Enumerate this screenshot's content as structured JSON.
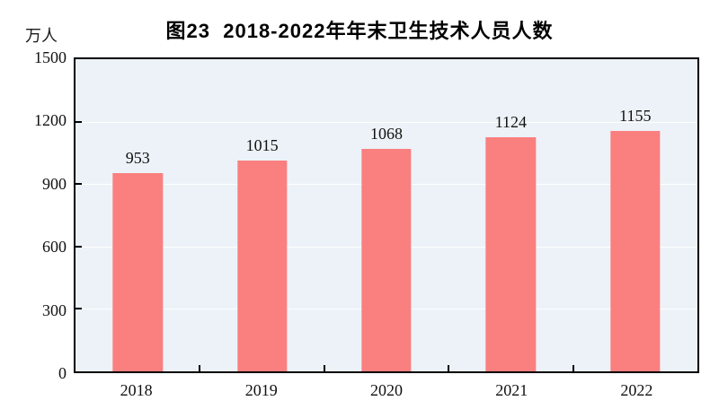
{
  "figure": {
    "title": "图23  2018-2022年年末卫生技术人员人数",
    "unit_label": "万人"
  },
  "chart_data": {
    "type": "bar",
    "title": "图23  2018-2022年年末卫生技术人员人数",
    "ylabel": "万人",
    "xlabel": "",
    "categories": [
      "2018",
      "2019",
      "2020",
      "2021",
      "2022"
    ],
    "values": [
      953,
      1015,
      1068,
      1124,
      1155
    ],
    "data_labels": [
      953,
      1015,
      1068,
      1124,
      1155
    ],
    "ylim": [
      0,
      1500
    ],
    "yticks": [
      0,
      300,
      600,
      900,
      1200,
      1500
    ],
    "grid": true,
    "legend": "none",
    "colors": {
      "bar_fill": "#FA7F7F",
      "plot_background": "#ECF2F7",
      "gridline": "#FFFFFF",
      "axis_border": "#000000",
      "text": "#111111"
    }
  }
}
